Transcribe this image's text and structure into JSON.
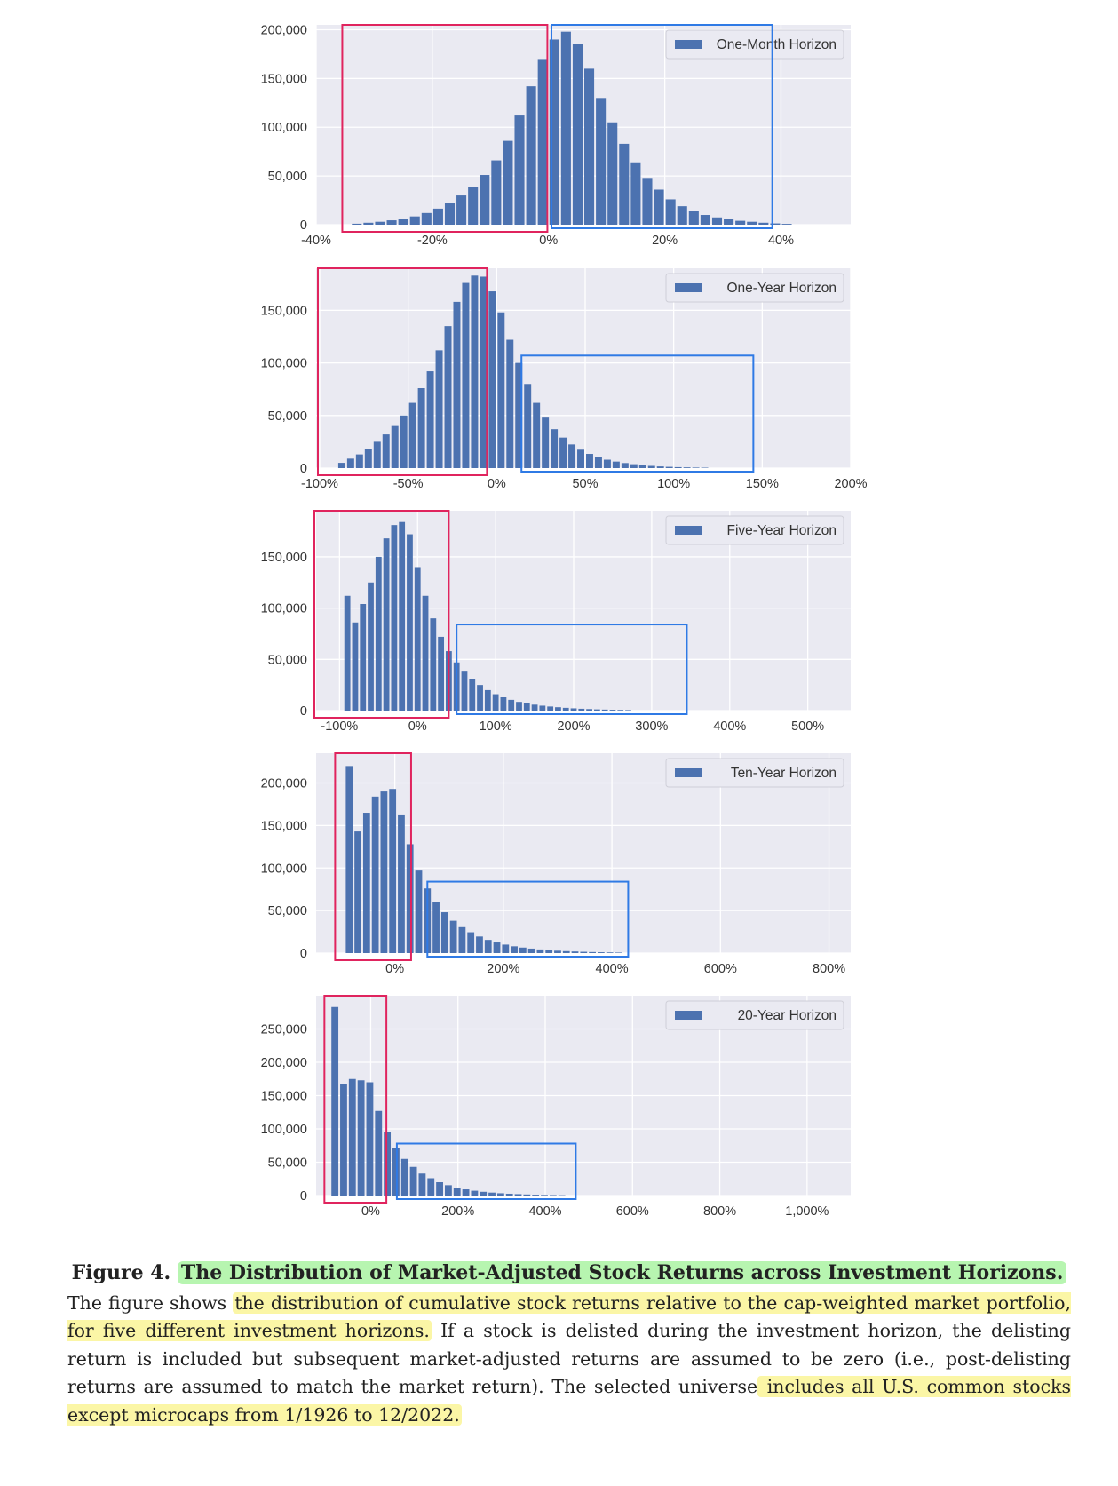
{
  "chart_data": [
    {
      "type": "bar",
      "legend": "One-Month Horizon",
      "x_ticks": [
        "-40%",
        "-20%",
        "0%",
        "20%",
        "40%"
      ],
      "y_ticks": [
        "0",
        "50,000",
        "100,000",
        "150,000",
        "200,000"
      ],
      "xlim": [
        -40,
        52
      ],
      "ylim": [
        0,
        205000
      ],
      "grid": true,
      "legend_position": "top-right",
      "bins": [
        [
          -34,
          1000
        ],
        [
          -32,
          2000
        ],
        [
          -30,
          3000
        ],
        [
          -28,
          4500
        ],
        [
          -26,
          6000
        ],
        [
          -24,
          8500
        ],
        [
          -22,
          12000
        ],
        [
          -20,
          16500
        ],
        [
          -18,
          22500
        ],
        [
          -16,
          30000
        ],
        [
          -14,
          39000
        ],
        [
          -12,
          51000
        ],
        [
          -10,
          66000
        ],
        [
          -8,
          86000
        ],
        [
          -6,
          112000
        ],
        [
          -4,
          142000
        ],
        [
          -2,
          170000
        ],
        [
          0,
          190000
        ],
        [
          2,
          198000
        ],
        [
          4,
          185000
        ],
        [
          6,
          160000
        ],
        [
          8,
          130000
        ],
        [
          10,
          105000
        ],
        [
          12,
          83000
        ],
        [
          14,
          64000
        ],
        [
          16,
          48000
        ],
        [
          18,
          36000
        ],
        [
          20,
          26000
        ],
        [
          22,
          19000
        ],
        [
          24,
          14000
        ],
        [
          26,
          10000
        ],
        [
          28,
          7500
        ],
        [
          30,
          5500
        ],
        [
          32,
          4000
        ],
        [
          34,
          3000
        ],
        [
          36,
          2000
        ],
        [
          38,
          1300
        ],
        [
          40,
          800
        ]
      ],
      "bin_width": 2,
      "highlight_red": {
        "x_range": [
          -35.5,
          -0.2
        ],
        "y_top": 205000
      },
      "highlight_blue": {
        "x_range": [
          0.5,
          38.5
        ],
        "y_top": 205000
      }
    },
    {
      "type": "bar",
      "legend": "One-Year Horizon",
      "x_ticks": [
        "-100%",
        "-50%",
        "0%",
        "50%",
        "100%",
        "150%",
        "200%"
      ],
      "y_ticks": [
        "0",
        "50,000",
        "100,000",
        "150,000"
      ],
      "xlim": [
        -102,
        200
      ],
      "ylim": [
        0,
        190000
      ],
      "grid": true,
      "legend_position": "top-right",
      "bins": [
        [
          -90,
          5000
        ],
        [
          -85,
          9000
        ],
        [
          -80,
          13000
        ],
        [
          -75,
          18000
        ],
        [
          -70,
          25000
        ],
        [
          -65,
          32000
        ],
        [
          -60,
          40000
        ],
        [
          -55,
          50000
        ],
        [
          -50,
          62000
        ],
        [
          -45,
          76000
        ],
        [
          -40,
          92000
        ],
        [
          -35,
          112000
        ],
        [
          -30,
          135000
        ],
        [
          -25,
          158000
        ],
        [
          -20,
          176000
        ],
        [
          -15,
          183000
        ],
        [
          -10,
          182000
        ],
        [
          -5,
          168000
        ],
        [
          0,
          148000
        ],
        [
          5,
          122000
        ],
        [
          10,
          100000
        ],
        [
          15,
          80000
        ],
        [
          20,
          62000
        ],
        [
          25,
          48000
        ],
        [
          30,
          37000
        ],
        [
          35,
          29000
        ],
        [
          40,
          22500
        ],
        [
          45,
          17500
        ],
        [
          50,
          13500
        ],
        [
          55,
          10500
        ],
        [
          60,
          8000
        ],
        [
          65,
          6200
        ],
        [
          70,
          4800
        ],
        [
          75,
          3700
        ],
        [
          80,
          2800
        ],
        [
          85,
          2100
        ],
        [
          90,
          1600
        ],
        [
          95,
          1200
        ],
        [
          100,
          900
        ],
        [
          105,
          700
        ],
        [
          110,
          500
        ],
        [
          115,
          400
        ]
      ],
      "bin_width": 5,
      "highlight_red": {
        "x_range": [
          -101,
          -5.5
        ],
        "y_top": 190000
      },
      "highlight_blue": {
        "x_range": [
          14,
          145
        ],
        "y_top": 107000
      }
    },
    {
      "type": "bar",
      "legend": "Five-Year Horizon",
      "x_ticks": [
        "-100%",
        "0%",
        "100%",
        "200%",
        "300%",
        "400%",
        "500%"
      ],
      "y_ticks": [
        "0",
        "50,000",
        "100,000",
        "150,000"
      ],
      "xlim": [
        -130,
        555
      ],
      "ylim": [
        0,
        195000
      ],
      "grid": true,
      "legend_position": "top-right",
      "bins": [
        [
          -95,
          112000
        ],
        [
          -85,
          86000
        ],
        [
          -75,
          104000
        ],
        [
          -65,
          125000
        ],
        [
          -55,
          150000
        ],
        [
          -45,
          168000
        ],
        [
          -35,
          181000
        ],
        [
          -25,
          184000
        ],
        [
          -15,
          172000
        ],
        [
          -5,
          140000
        ],
        [
          5,
          112000
        ],
        [
          15,
          90000
        ],
        [
          25,
          72000
        ],
        [
          35,
          58000
        ],
        [
          45,
          47000
        ],
        [
          55,
          38000
        ],
        [
          65,
          31000
        ],
        [
          75,
          25000
        ],
        [
          85,
          20000
        ],
        [
          95,
          16000
        ],
        [
          105,
          13000
        ],
        [
          115,
          10500
        ],
        [
          125,
          8500
        ],
        [
          135,
          7000
        ],
        [
          145,
          5800
        ],
        [
          155,
          4800
        ],
        [
          165,
          4000
        ],
        [
          175,
          3300
        ],
        [
          185,
          2700
        ],
        [
          195,
          2200
        ],
        [
          205,
          1800
        ],
        [
          215,
          1500
        ],
        [
          225,
          1200
        ],
        [
          235,
          1000
        ],
        [
          245,
          800
        ],
        [
          255,
          650
        ],
        [
          265,
          500
        ]
      ],
      "bin_width": 10,
      "highlight_red": {
        "x_range": [
          -135,
          40
        ],
        "y_top": 195000
      },
      "highlight_blue": {
        "x_range": [
          50,
          345
        ],
        "y_top": 84000
      }
    },
    {
      "type": "bar",
      "legend": "Ten-Year Horizon",
      "x_ticks": [
        "0%",
        "200%",
        "400%",
        "600%",
        "800%"
      ],
      "y_ticks": [
        "0",
        "50,000",
        "100,000",
        "150,000",
        "200,000"
      ],
      "xlim": [
        -145,
        840
      ],
      "ylim": [
        0,
        235000
      ],
      "grid": true,
      "legend_position": "top-right",
      "bins": [
        [
          -92,
          220000
        ],
        [
          -76,
          143000
        ],
        [
          -60,
          165000
        ],
        [
          -44,
          184000
        ],
        [
          -28,
          190000
        ],
        [
          -12,
          193000
        ],
        [
          4,
          163000
        ],
        [
          20,
          128000
        ],
        [
          36,
          97000
        ],
        [
          52,
          76000
        ],
        [
          68,
          60000
        ],
        [
          84,
          48000
        ],
        [
          100,
          38000
        ],
        [
          116,
          30500
        ],
        [
          132,
          24500
        ],
        [
          148,
          19500
        ],
        [
          164,
          15500
        ],
        [
          180,
          12500
        ],
        [
          196,
          10000
        ],
        [
          212,
          8000
        ],
        [
          228,
          6500
        ],
        [
          244,
          5300
        ],
        [
          260,
          4300
        ],
        [
          276,
          3500
        ],
        [
          292,
          2800
        ],
        [
          308,
          2300
        ],
        [
          324,
          1900
        ],
        [
          340,
          1500
        ],
        [
          356,
          1200
        ],
        [
          372,
          1000
        ],
        [
          388,
          800
        ],
        [
          404,
          600
        ]
      ],
      "bin_width": 16,
      "highlight_red": {
        "x_range": [
          -110,
          30
        ],
        "y_top": 235000
      },
      "highlight_blue": {
        "x_range": [
          60,
          430
        ],
        "y_top": 84000
      }
    },
    {
      "type": "bar",
      "legend": "20-Year Horizon",
      "x_ticks": [
        "0%",
        "200%",
        "400%",
        "600%",
        "800%",
        "1,000%"
      ],
      "y_ticks": [
        "0",
        "50,000",
        "100,000",
        "150,000",
        "200,000",
        "250,000"
      ],
      "xlim": [
        -125,
        1100
      ],
      "ylim": [
        0,
        300000
      ],
      "grid": true,
      "legend_position": "top-right",
      "bins": [
        [
          -92,
          283000
        ],
        [
          -72,
          168000
        ],
        [
          -52,
          175000
        ],
        [
          -32,
          173000
        ],
        [
          -12,
          170000
        ],
        [
          8,
          127000
        ],
        [
          28,
          95000
        ],
        [
          48,
          72000
        ],
        [
          68,
          55000
        ],
        [
          88,
          43000
        ],
        [
          108,
          33000
        ],
        [
          128,
          26000
        ],
        [
          148,
          20000
        ],
        [
          168,
          15500
        ],
        [
          188,
          12000
        ],
        [
          208,
          9300
        ],
        [
          228,
          7200
        ],
        [
          248,
          5600
        ],
        [
          268,
          4400
        ],
        [
          288,
          3400
        ],
        [
          308,
          2700
        ],
        [
          328,
          2100
        ],
        [
          348,
          1600
        ],
        [
          368,
          1200
        ],
        [
          388,
          900
        ],
        [
          408,
          700
        ],
        [
          428,
          500
        ]
      ],
      "bin_width": 20,
      "highlight_red": {
        "x_range": [
          -106,
          36
        ],
        "y_top": 300000
      },
      "highlight_blue": {
        "x_range": [
          60,
          470
        ],
        "y_top": 78000
      }
    }
  ],
  "caption": {
    "figure_label": "Figure 4.",
    "title": "The Distribution of Market-Adjusted Stock Returns across Investment Horizons.",
    "p1": "The figure shows ",
    "p2_highlight": "the distribution of cumulative stock returns relative to the cap-weighted market portfolio, for five different investment horizons.",
    "p3": " If a stock is delisted during the investment horizon, the delisting return is included but subsequent market-adjusted returns are assumed to be zero (i.e., post-delisting returns are assumed to match the market return). The selected universe",
    "p4_highlight": " includes all U.S. common stocks except microcaps from 1/1926 to 12/2022."
  },
  "colors": {
    "bar": "#4c72b0",
    "plot_bg": "#eaeaf2",
    "grid": "#ffffff",
    "red_box": "#e0245e",
    "blue_box": "#2f7ae5"
  }
}
